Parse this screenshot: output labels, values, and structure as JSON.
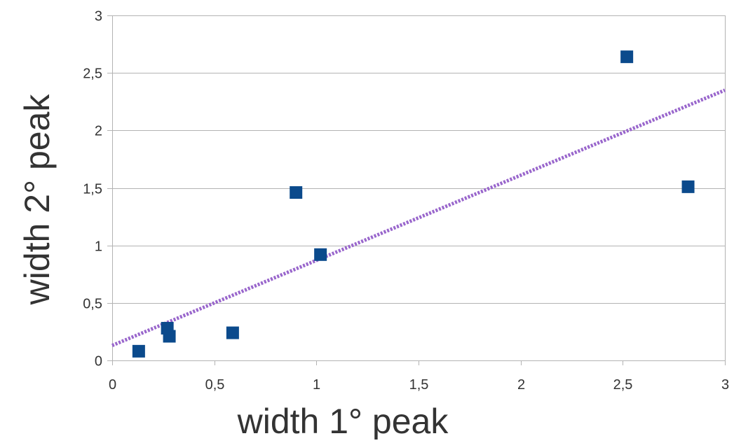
{
  "chart_data": {
    "type": "scatter",
    "title": "",
    "xlabel": "width 1° peak",
    "ylabel": "width 2° peak",
    "xlim": [
      0,
      3
    ],
    "ylim": [
      0,
      3
    ],
    "x_ticks": [
      0,
      0.5,
      1,
      1.5,
      2,
      2.5,
      3
    ],
    "y_ticks": [
      0,
      0.5,
      1,
      1.5,
      2,
      2.5,
      3
    ],
    "x_tick_labels": [
      "0",
      "0,5",
      "1",
      "1,5",
      "2",
      "2,5",
      "3"
    ],
    "y_tick_labels": [
      "0",
      "0,5",
      "1",
      "1,5",
      "2",
      "2,5",
      "3"
    ],
    "grid": "horizontal",
    "legend": "none",
    "series": [
      {
        "marker": "square",
        "color": "#0b4a8c",
        "points": [
          {
            "x": 0.13,
            "y": 0.08
          },
          {
            "x": 0.27,
            "y": 0.28
          },
          {
            "x": 0.28,
            "y": 0.21
          },
          {
            "x": 0.59,
            "y": 0.24
          },
          {
            "x": 0.9,
            "y": 1.46
          },
          {
            "x": 1.02,
            "y": 0.92
          },
          {
            "x": 2.52,
            "y": 2.64
          },
          {
            "x": 2.82,
            "y": 1.51
          }
        ]
      }
    ],
    "trendline": {
      "type": "linear",
      "style": "dotted",
      "color": "#9966cc",
      "from": {
        "x": 0,
        "y": 0.13
      },
      "to": {
        "x": 3,
        "y": 2.35
      }
    },
    "colors": {
      "axis": "#b3b3b3",
      "grid": "#b3b3b3",
      "text": "#333333"
    }
  }
}
